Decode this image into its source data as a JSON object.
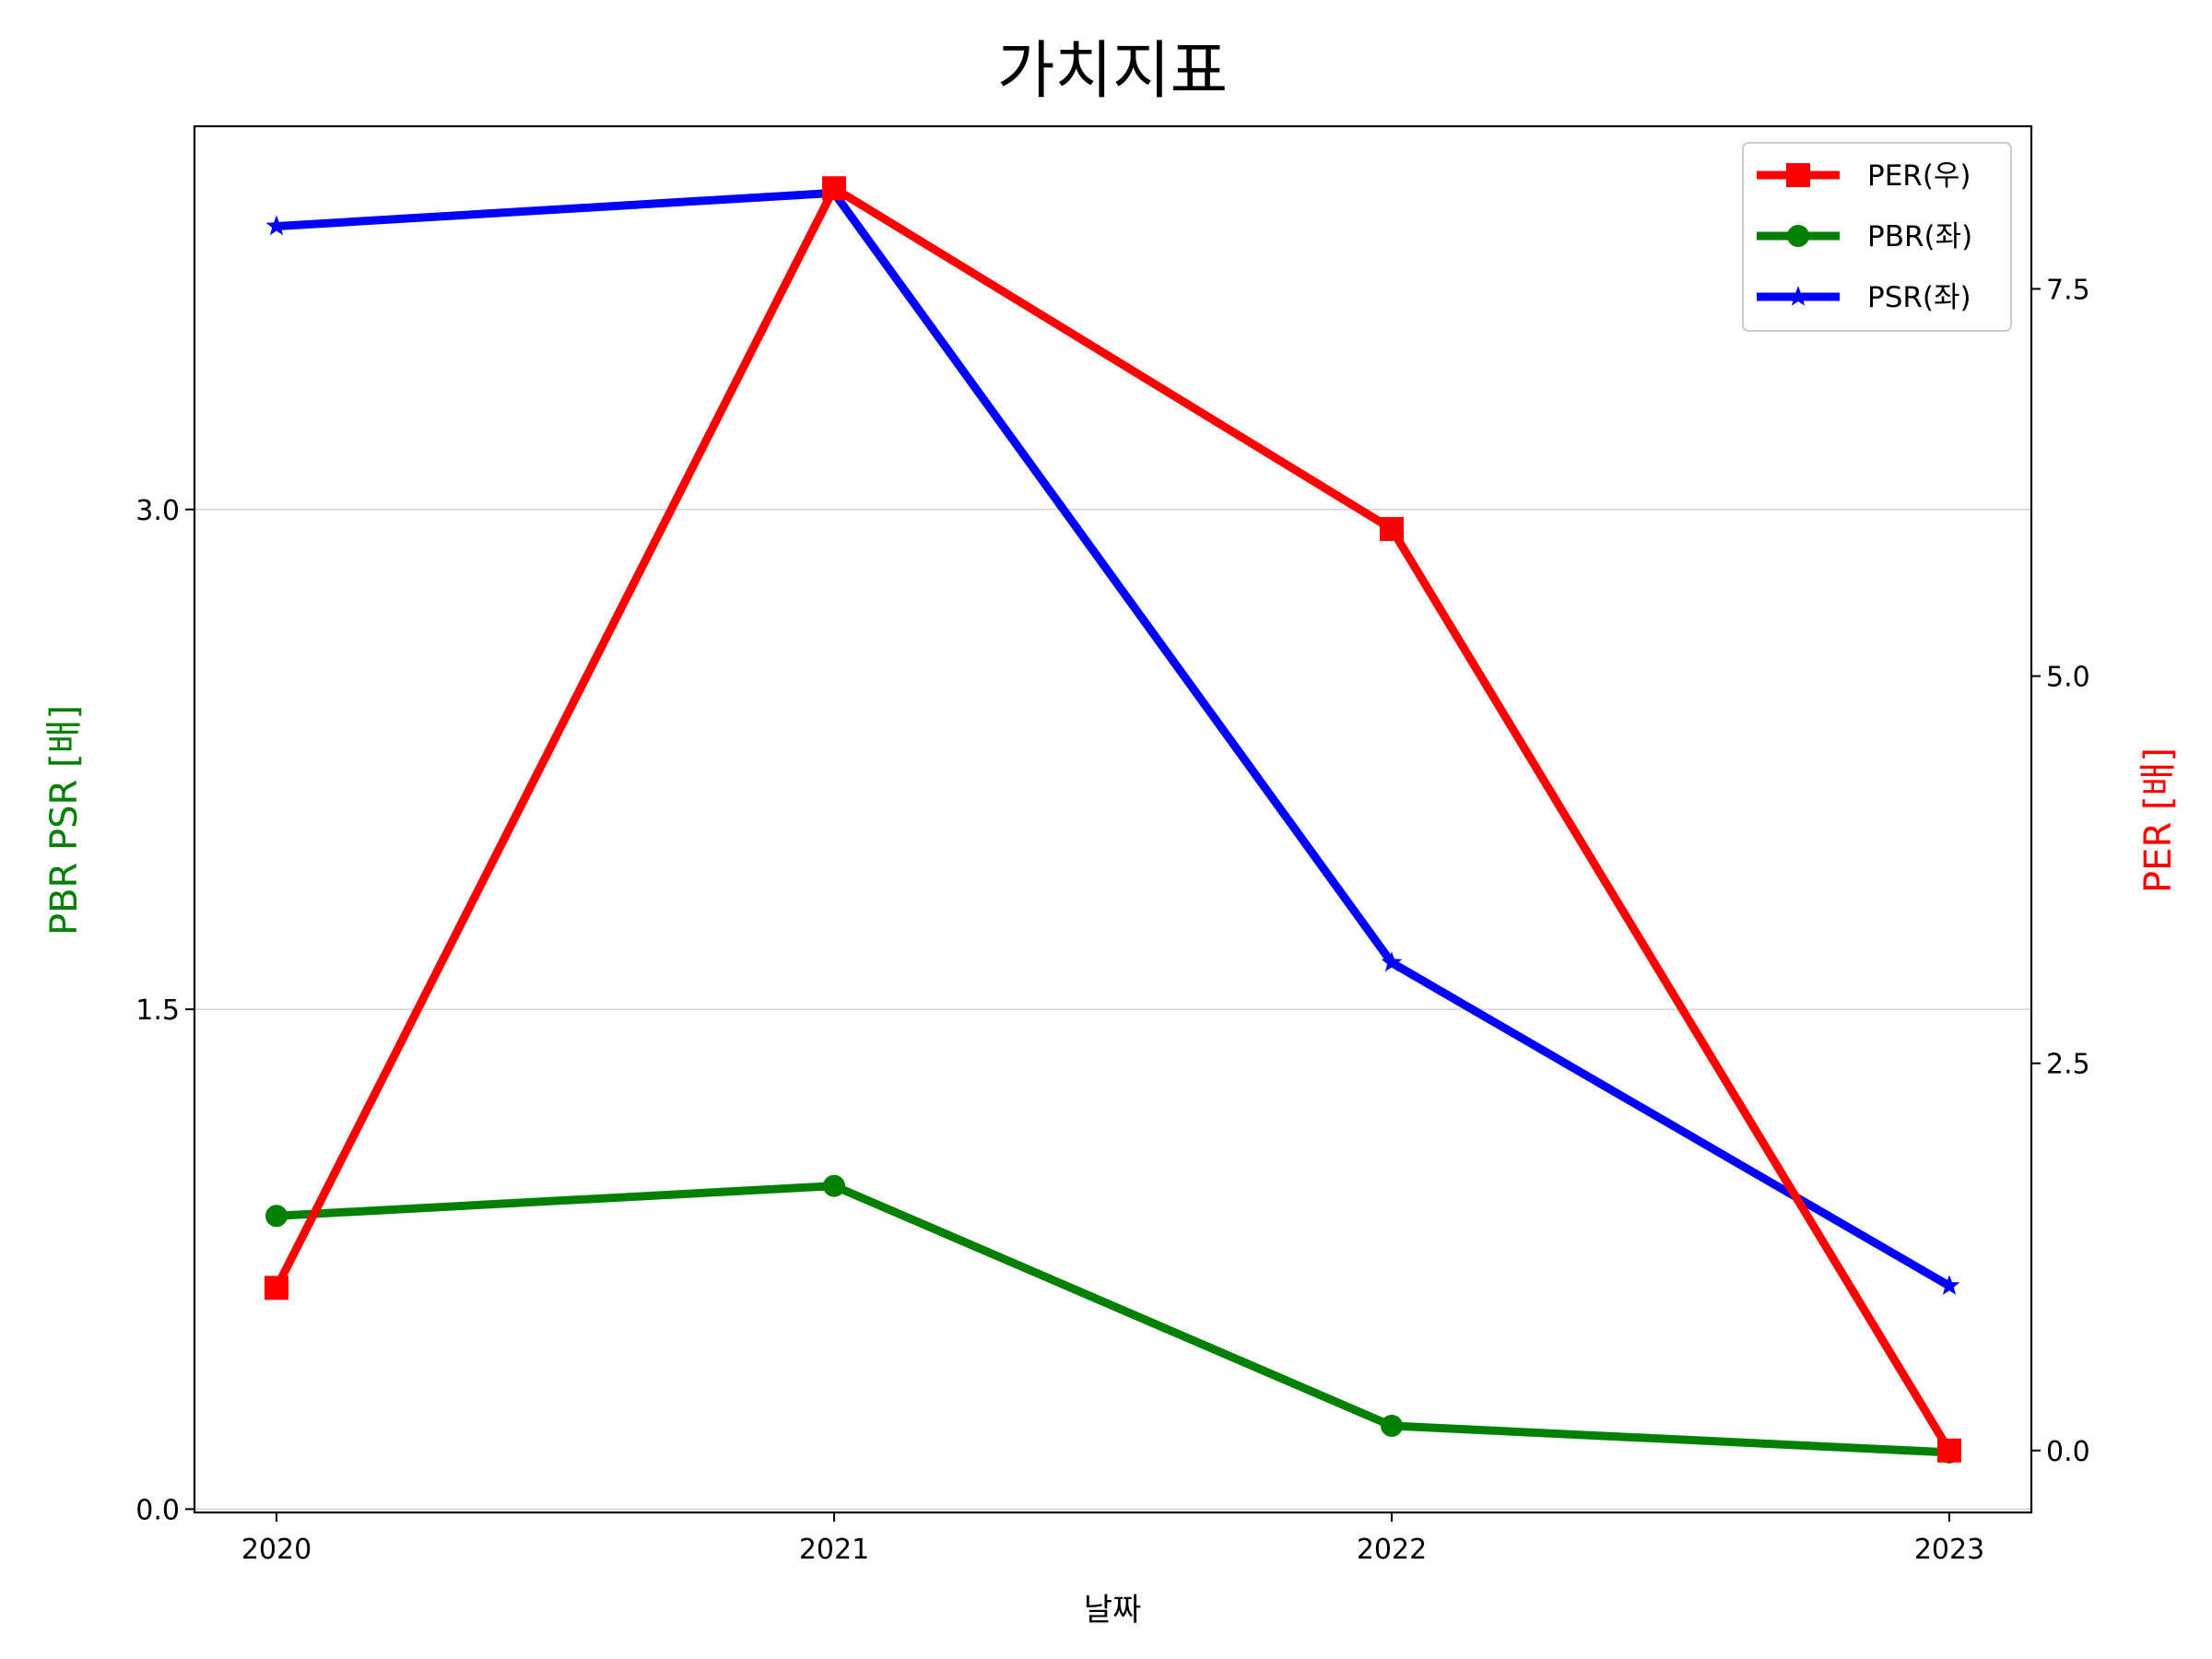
{
  "chart_data": {
    "type": "line",
    "title": "가치지표",
    "xlabel": "날짜",
    "ylabel_left": "PBR PSR [배]",
    "ylabel_right": "PER [배]",
    "categories": [
      "2020",
      "2021",
      "2022",
      "2023"
    ],
    "y_left": {
      "lim": [
        -0.01,
        4.15
      ],
      "ticks": [
        0.0,
        1.5,
        3.0
      ],
      "tick_labels": [
        "0.0",
        "1.5",
        "3.0"
      ],
      "grid": true
    },
    "y_right": {
      "lim": [
        -0.4,
        8.55
      ],
      "ticks": [
        0.0,
        2.5,
        5.0,
        7.5
      ],
      "tick_labels": [
        "0.0",
        "2.5",
        "5.0",
        "7.5"
      ]
    },
    "legend": {
      "position": "top-right"
    },
    "series": [
      {
        "name": "PER(우)",
        "axis": "right",
        "color": "#ff0000",
        "marker": "square",
        "values": [
          1.05,
          8.15,
          5.95,
          0.0
        ]
      },
      {
        "name": "PBR(좌)",
        "axis": "left",
        "color": "#008000",
        "marker": "circle",
        "values": [
          0.88,
          0.97,
          0.25,
          0.17
        ]
      },
      {
        "name": "PSR(좌)",
        "axis": "left",
        "color": "#0000ff",
        "marker": "star",
        "values": [
          3.85,
          3.95,
          1.64,
          0.67
        ]
      }
    ],
    "colors": {
      "ylabel_left": "#008000",
      "ylabel_right": "#ff0000"
    }
  }
}
